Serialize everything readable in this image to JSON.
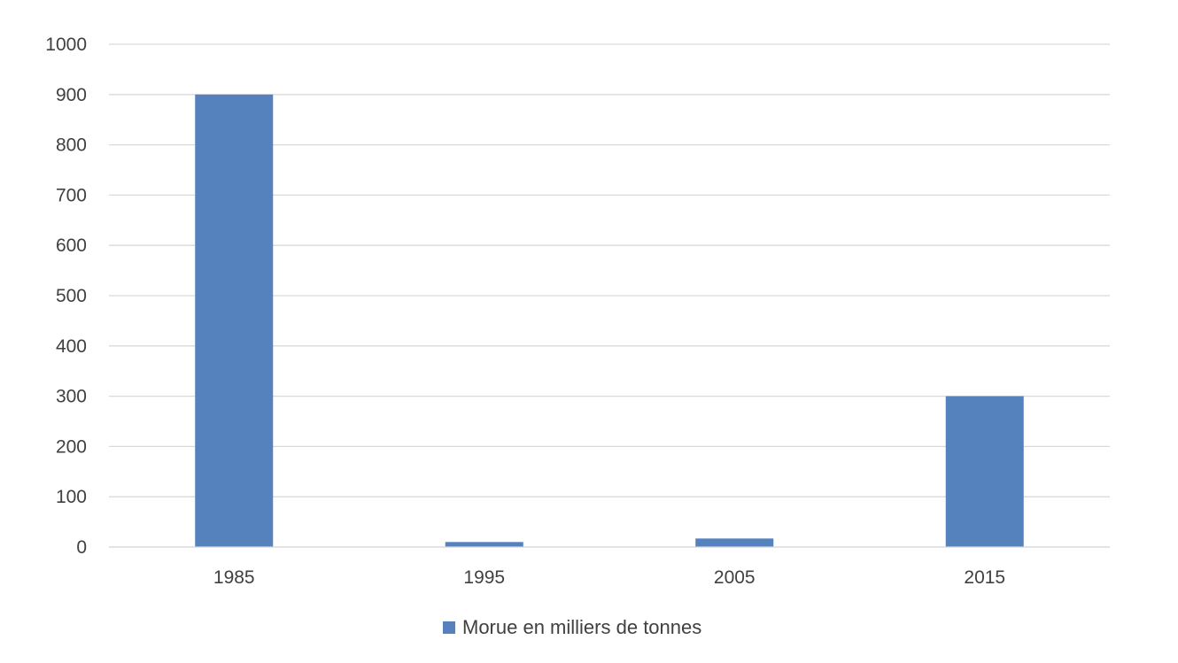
{
  "chart_data": {
    "type": "bar",
    "categories": [
      "1985",
      "1995",
      "2005",
      "2015"
    ],
    "series": [
      {
        "name": "Morue en milliers de tonnes",
        "values": [
          900,
          10,
          17,
          300
        ],
        "color": "#5581bd"
      }
    ],
    "ylim": [
      0,
      1000
    ],
    "yticks": [
      "0",
      "100",
      "200",
      "300",
      "400",
      "500",
      "600",
      "700",
      "800",
      "900",
      "1000"
    ],
    "title": "",
    "xlabel": "",
    "ylabel": "",
    "grid": true,
    "gridline_color": "#d9d9d9",
    "legend_position": "bottom"
  }
}
